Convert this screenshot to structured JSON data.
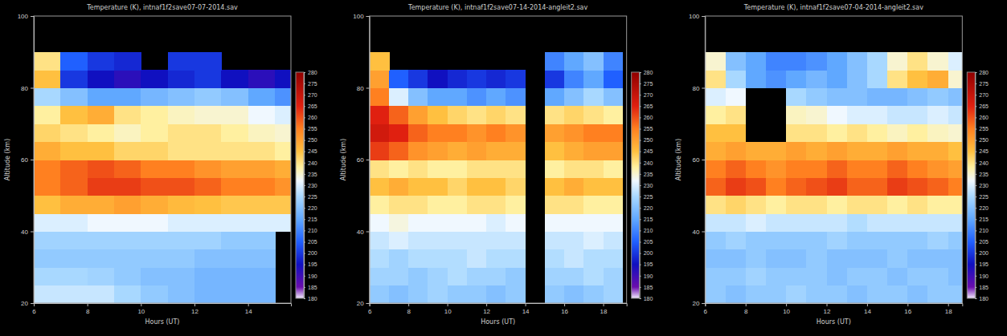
{
  "chart_data": [
    {
      "type": "heatmap",
      "title": "Temperature (K), intnaf1f2save07-07-2014.sav",
      "x_label": "Hours (UT)",
      "y_label": "Altitude (km)",
      "x": [
        6.5,
        7.5,
        8.5,
        9.5,
        10.5,
        11.5,
        12.5,
        13.5,
        14.5,
        15.5
      ],
      "y": [
        22.5,
        27.5,
        32.5,
        37.5,
        42.5,
        47.5,
        52.5,
        57.5,
        62.5,
        67.5,
        72.5,
        77.5,
        82.5,
        87.5
      ],
      "z": [
        [
          228,
          228,
          228,
          225,
          222,
          220,
          218,
          218,
          218,
          null
        ],
        [
          225,
          225,
          224,
          222,
          220,
          220,
          218,
          218,
          218,
          null
        ],
        [
          222,
          222,
          222,
          222,
          222,
          222,
          220,
          220,
          220,
          null
        ],
        [
          224,
          224,
          224,
          224,
          224,
          224,
          224,
          222,
          222,
          null
        ],
        [
          230,
          230,
          232,
          232,
          232,
          230,
          230,
          230,
          230,
          230
        ],
        [
          245,
          248,
          248,
          250,
          248,
          246,
          245,
          244,
          244,
          244
        ],
        [
          255,
          258,
          262,
          262,
          260,
          260,
          258,
          255,
          255,
          252
        ],
        [
          255,
          258,
          260,
          258,
          255,
          255,
          252,
          250,
          250,
          248
        ],
        [
          248,
          245,
          245,
          242,
          242,
          240,
          240,
          240,
          240,
          238
        ],
        [
          242,
          240,
          238,
          236,
          238,
          240,
          240,
          238,
          236,
          235
        ],
        [
          238,
          245,
          248,
          240,
          238,
          236,
          235,
          235,
          232,
          230
        ],
        [
          225,
          220,
          215,
          215,
          218,
          220,
          222,
          220,
          215,
          212
        ],
        [
          245,
          200,
          195,
          192,
          195,
          198,
          200,
          195,
          192,
          195
        ],
        [
          240,
          205,
          200,
          198,
          null,
          200,
          200,
          null,
          null,
          null
        ]
      ],
      "xlim": [
        6,
        15.6
      ],
      "xticks": [
        6,
        8,
        10,
        12,
        14
      ],
      "ylim": [
        20,
        100
      ],
      "yticks": [
        20,
        40,
        60,
        80,
        100
      ],
      "color_range": [
        180,
        280
      ],
      "color_ticks": [
        180,
        185,
        190,
        195,
        200,
        205,
        210,
        215,
        220,
        225,
        230,
        235,
        240,
        245,
        250,
        255,
        260,
        265,
        270,
        275,
        280
      ]
    },
    {
      "type": "heatmap",
      "title": "Temperature (K), intnaf1f2save07-14-2014-angleit2.sav",
      "x_label": "Hours (UT)",
      "y_label": "Altitude (km)",
      "x": [
        6.5,
        7.5,
        8.5,
        9.5,
        10.5,
        11.5,
        12.5,
        13.5,
        14.5,
        15.5,
        16.5,
        17.5,
        18.5
      ],
      "y": [
        22.5,
        27.5,
        32.5,
        37.5,
        42.5,
        47.5,
        52.5,
        57.5,
        62.5,
        67.5,
        72.5,
        77.5,
        82.5,
        87.5
      ],
      "z": [
        [
          222,
          220,
          222,
          224,
          222,
          222,
          220,
          222,
          null,
          222,
          220,
          222,
          224
        ],
        [
          224,
          224,
          222,
          224,
          226,
          224,
          224,
          222,
          null,
          224,
          224,
          226,
          224
        ],
        [
          226,
          224,
          226,
          226,
          226,
          228,
          226,
          226,
          null,
          226,
          228,
          226,
          226
        ],
        [
          228,
          230,
          228,
          228,
          228,
          228,
          228,
          228,
          null,
          228,
          228,
          230,
          228
        ],
        [
          232,
          234,
          232,
          232,
          232,
          232,
          230,
          232,
          null,
          232,
          232,
          232,
          232
        ],
        [
          238,
          240,
          240,
          238,
          238,
          240,
          240,
          238,
          null,
          240,
          240,
          238,
          238
        ],
        [
          245,
          248,
          245,
          245,
          242,
          245,
          245,
          242,
          null,
          245,
          248,
          245,
          245
        ],
        [
          240,
          238,
          240,
          238,
          238,
          240,
          240,
          240,
          null,
          238,
          240,
          240,
          238
        ],
        [
          262,
          258,
          252,
          250,
          248,
          250,
          248,
          248,
          null,
          245,
          248,
          250,
          250
        ],
        [
          268,
          265,
          258,
          255,
          255,
          252,
          255,
          252,
          null,
          250,
          252,
          255,
          255
        ],
        [
          265,
          258,
          250,
          245,
          242,
          240,
          242,
          240,
          null,
          240,
          242,
          240,
          238
        ],
        [
          255,
          230,
          220,
          215,
          215,
          212,
          215,
          212,
          null,
          215,
          220,
          225,
          220
        ],
        [
          250,
          205,
          200,
          195,
          198,
          200,
          198,
          200,
          null,
          200,
          210,
          215,
          205
        ],
        [
          245,
          null,
          null,
          null,
          null,
          null,
          null,
          null,
          null,
          210,
          215,
          220,
          210
        ]
      ],
      "xlim": [
        6,
        19.2
      ],
      "xticks": [
        6,
        8,
        10,
        12,
        14,
        16,
        18
      ],
      "ylim": [
        20,
        100
      ],
      "yticks": [
        20,
        40,
        60,
        80,
        100
      ],
      "color_range": [
        180,
        280
      ],
      "color_ticks": [
        180,
        185,
        190,
        195,
        200,
        205,
        210,
        215,
        220,
        225,
        230,
        235,
        240,
        245,
        250,
        255,
        260,
        265,
        270,
        275,
        280
      ]
    },
    {
      "type": "heatmap",
      "title": "Temperature (K), intnaf1f2save07-04-2014-angleit2.sav",
      "x_label": "Hours (UT)",
      "y_label": "Altitude (km)",
      "x": [
        6.5,
        7.5,
        8.5,
        9.5,
        10.5,
        11.5,
        12.5,
        13.5,
        14.5,
        15.5,
        16.5,
        17.5,
        18.5
      ],
      "y": [
        22.5,
        27.5,
        32.5,
        37.5,
        42.5,
        47.5,
        52.5,
        57.5,
        62.5,
        67.5,
        72.5,
        77.5,
        82.5,
        87.5
      ],
      "z": [
        [
          222,
          220,
          222,
          222,
          224,
          222,
          222,
          220,
          222,
          222,
          220,
          222,
          222
        ],
        [
          222,
          222,
          224,
          222,
          222,
          222,
          220,
          222,
          222,
          220,
          222,
          222,
          220
        ],
        [
          220,
          220,
          222,
          220,
          220,
          222,
          220,
          220,
          220,
          222,
          220,
          220,
          220
        ],
        [
          222,
          224,
          222,
          222,
          222,
          222,
          224,
          222,
          222,
          222,
          222,
          224,
          222
        ],
        [
          228,
          228,
          230,
          228,
          228,
          228,
          228,
          226,
          228,
          228,
          228,
          228,
          228
        ],
        [
          240,
          242,
          240,
          238,
          240,
          240,
          238,
          240,
          240,
          238,
          240,
          238,
          238
        ],
        [
          258,
          262,
          260,
          255,
          258,
          260,
          262,
          258,
          258,
          262,
          260,
          258,
          255
        ],
        [
          255,
          258,
          255,
          252,
          255,
          255,
          258,
          255,
          255,
          258,
          255,
          252,
          250
        ],
        [
          248,
          250,
          248,
          248,
          250,
          248,
          250,
          248,
          248,
          250,
          248,
          248,
          245
        ],
        [
          245,
          245,
          null,
          null,
          240,
          240,
          238,
          240,
          238,
          236,
          238,
          236,
          235
        ],
        [
          238,
          240,
          null,
          null,
          236,
          235,
          232,
          230,
          230,
          228,
          228,
          230,
          228
        ],
        [
          230,
          232,
          null,
          null,
          225,
          222,
          220,
          220,
          218,
          218,
          220,
          222,
          220
        ],
        [
          240,
          225,
          215,
          212,
          215,
          218,
          215,
          220,
          225,
          240,
          245,
          248,
          235
        ],
        [
          235,
          220,
          215,
          210,
          210,
          212,
          215,
          220,
          225,
          235,
          240,
          235,
          230
        ]
      ],
      "xlim": [
        6,
        18.7
      ],
      "xticks": [
        6,
        8,
        10,
        12,
        14,
        16,
        18
      ],
      "ylim": [
        20,
        100
      ],
      "yticks": [
        20,
        40,
        60,
        80,
        100
      ],
      "color_range": [
        180,
        280
      ],
      "color_ticks": [
        180,
        185,
        190,
        195,
        200,
        205,
        210,
        215,
        220,
        225,
        230,
        235,
        240,
        245,
        250,
        255,
        260,
        265,
        270,
        275,
        280
      ]
    }
  ]
}
